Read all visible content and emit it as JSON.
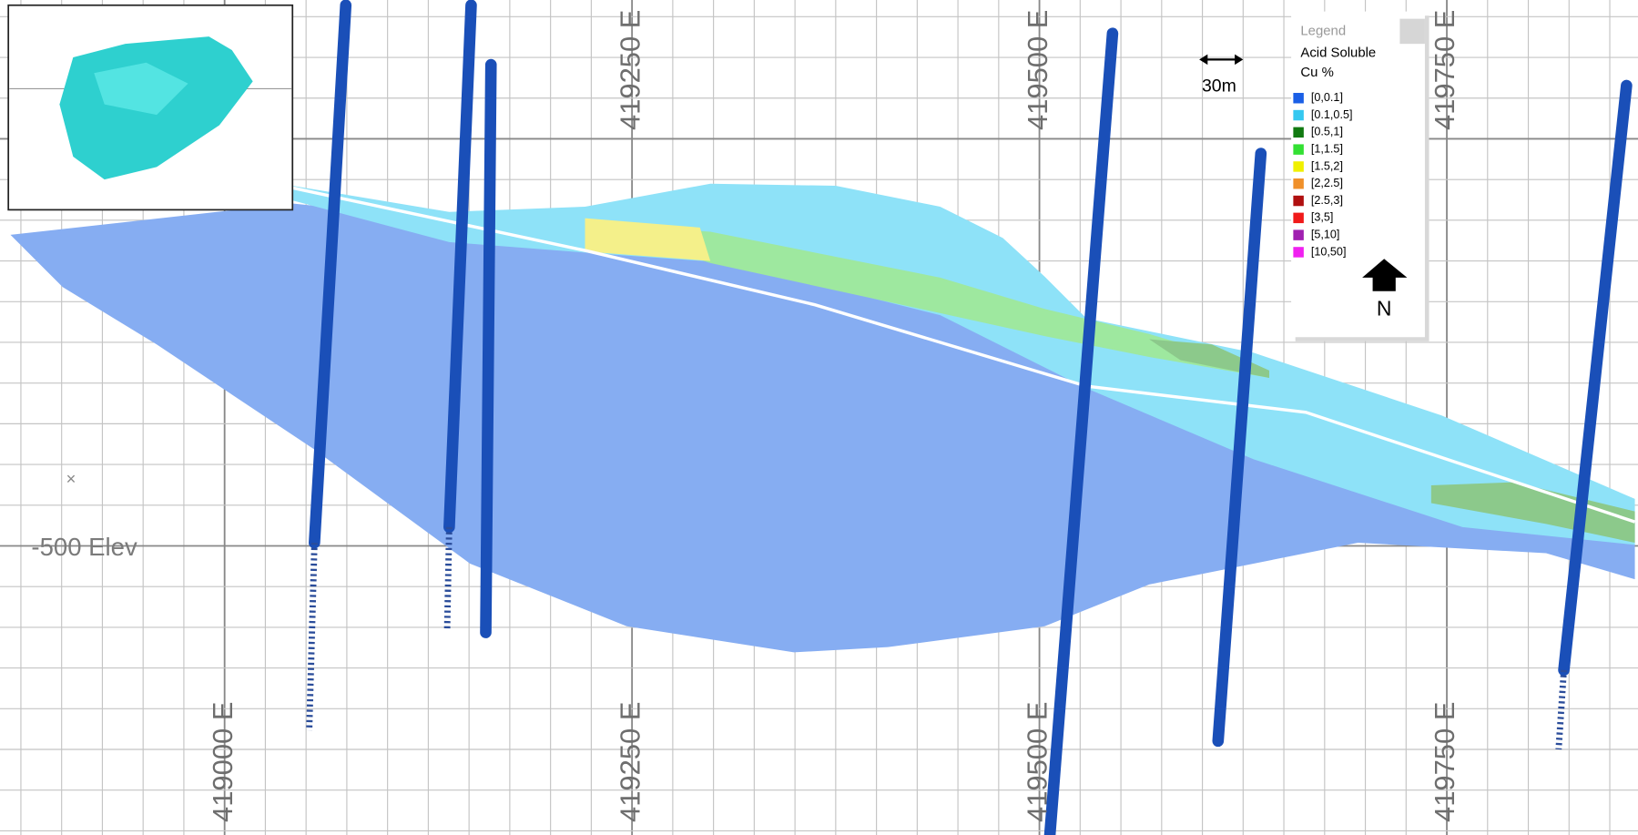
{
  "inset": {},
  "grid_labels": {
    "top": [
      "419250 E",
      "419500 E",
      "419750 E"
    ],
    "bottom": [
      "419000 E",
      "419250 E",
      "419500 E",
      "419750 E"
    ]
  },
  "elevation_label": "-500 Elev",
  "scale_bar": "30m",
  "legend": {
    "title": "Legend",
    "heading": [
      "Acid Soluble",
      "Cu %"
    ],
    "items": [
      {
        "label": "[0,0.1]",
        "color": "#1a5fe6"
      },
      {
        "label": "[0.1,0.5]",
        "color": "#35c8f0"
      },
      {
        "label": "[0.5,1]",
        "color": "#117a11"
      },
      {
        "label": "[1,1.5]",
        "color": "#33e033"
      },
      {
        "label": "[1.5,2]",
        "color": "#f0f000"
      },
      {
        "label": "[2,2.5]",
        "color": "#f0902a"
      },
      {
        "label": "[2.5,3]",
        "color": "#b01010"
      },
      {
        "label": "[3,5]",
        "color": "#f01a1a"
      },
      {
        "label": "[5,10]",
        "color": "#a020b0"
      },
      {
        "label": "[10,50]",
        "color": "#f020f0"
      }
    ],
    "north": "N"
  }
}
